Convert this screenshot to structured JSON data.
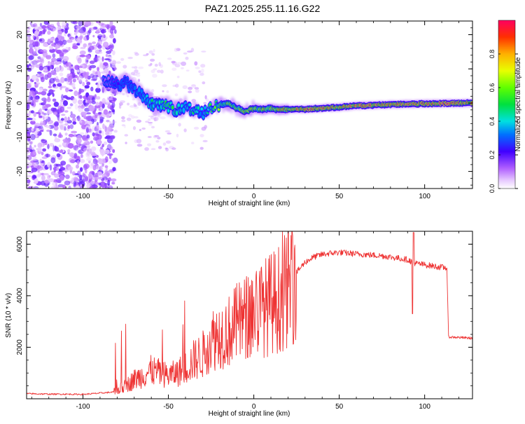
{
  "figure": {
    "title": "PAZ1.2025.255.11.16.G22"
  },
  "chart_data": [
    {
      "type": "heatmap",
      "xlabel": "Height of straight line (km)",
      "ylabel": "Frequency (Hz)",
      "xlim": [
        -133,
        128
      ],
      "ylim": [
        -25,
        24
      ],
      "xticks": [
        -100,
        -50,
        0,
        50,
        100
      ],
      "yticks": [
        -20,
        -10,
        0,
        10,
        20
      ],
      "colorbar": {
        "label": "Normalized spectral amplitude",
        "range": [
          0,
          1
        ],
        "ticks": [
          "0.0",
          "0.2",
          "0.4",
          "0.6",
          "0.8"
        ],
        "tick_values": [
          0.0,
          0.2,
          0.4,
          0.6,
          0.8
        ]
      },
      "ridge": {
        "x": [
          -85,
          -80,
          -75,
          -70,
          -65,
          -60,
          -55,
          -50,
          -45,
          -40,
          -35,
          -30,
          -25,
          -20,
          -15,
          -10,
          -5,
          0,
          5,
          10,
          15,
          20,
          30,
          40,
          50,
          60,
          70,
          80,
          90,
          100,
          110,
          128
        ],
        "freq": [
          6,
          5.5,
          6,
          4,
          2,
          0,
          -1,
          -1,
          -2,
          -1,
          -2,
          -3,
          -1.5,
          -0.5,
          0,
          -1.5,
          -2.5,
          -1.5,
          -2,
          -1.5,
          -2,
          -1.8,
          -1.8,
          -1.5,
          -1.2,
          -0.8,
          -0.6,
          -0.4,
          -0.3,
          -0.2,
          -0.1,
          0
        ],
        "amplitude": [
          0.15,
          0.25,
          0.3,
          0.3,
          0.35,
          0.45,
          0.45,
          0.5,
          0.5,
          0.45,
          0.45,
          0.4,
          0.55,
          0.6,
          0.65,
          0.7,
          0.8,
          0.7,
          0.75,
          0.75,
          0.8,
          0.85,
          0.9,
          0.95,
          0.85,
          0.98,
          0.95,
          0.9,
          0.98,
          0.98,
          0.98,
          0.9
        ]
      }
    },
    {
      "type": "line",
      "xlabel": "Height of straight line (km)",
      "ylabel": "SNR (10 * v/v)",
      "xlim": [
        -133,
        128
      ],
      "ylim": [
        0,
        6500
      ],
      "xticks": [
        -100,
        -50,
        0,
        50,
        100
      ],
      "yticks": [
        2000,
        4000,
        6000
      ],
      "series": [
        {
          "name": "SNR",
          "color": "#ee3333",
          "x": [
            -133,
            -120,
            -110,
            -100,
            -90,
            -82,
            -75,
            -70,
            -65,
            -60,
            -55,
            -50,
            -45,
            -40,
            -35,
            -30,
            -25,
            -20,
            -15,
            -10,
            -5,
            0,
            5,
            10,
            15,
            20,
            25,
            30,
            35,
            40,
            45,
            50,
            55,
            60,
            65,
            70,
            75,
            80,
            85,
            90,
            93,
            95,
            100,
            105,
            110,
            113,
            114,
            120,
            128
          ],
          "y": [
            200,
            180,
            180,
            170,
            220,
            260,
            500,
            750,
            900,
            1100,
            1000,
            900,
            1000,
            1200,
            1500,
            1700,
            2300,
            2500,
            2600,
            2900,
            3100,
            3400,
            3500,
            3700,
            3900,
            4300,
            4900,
            5300,
            5500,
            5600,
            5650,
            5680,
            5650,
            5620,
            5600,
            5570,
            5550,
            5500,
            5450,
            5400,
            5300,
            5250,
            5200,
            5150,
            5100,
            5080,
            2400,
            2380,
            2350
          ]
        }
      ]
    }
  ]
}
